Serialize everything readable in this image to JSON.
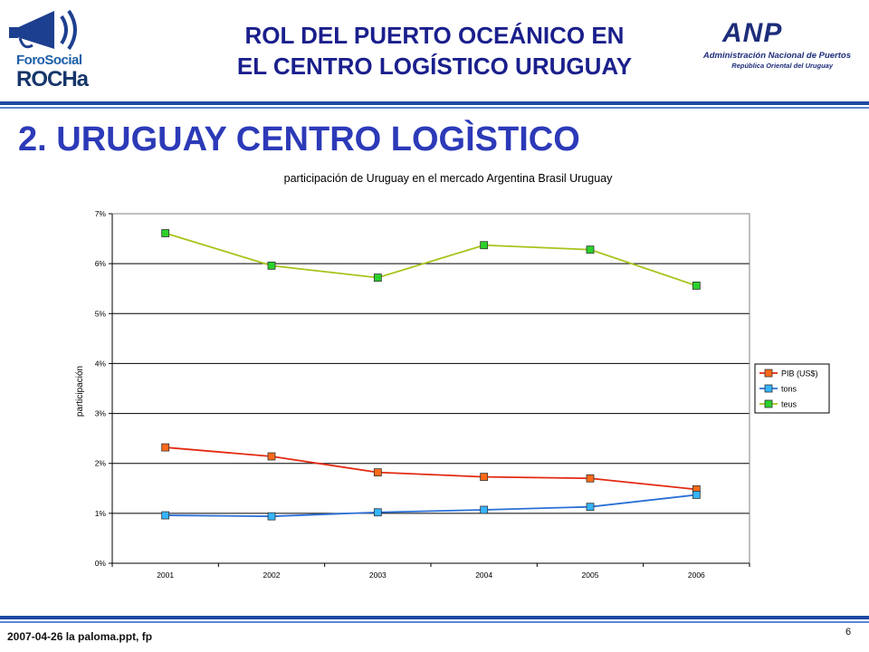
{
  "header": {
    "title_line1": "ROL DEL PUERTO OCEÁNICO EN",
    "title_line2": "EL CENTRO LOGÍSTICO URUGUAY",
    "logo_left": {
      "line1": "ForoSocial",
      "line2": "ROCHa"
    },
    "logo_right": {
      "name": "ANP",
      "line1": "Administración Nacional de Puertos",
      "line2": "República Oriental del Uruguay"
    }
  },
  "section_title": "2. URUGUAY CENTRO LOGÌSTICO",
  "chart_data": {
    "type": "line",
    "title": "participación de Uruguay en el mercado Argentina Brasil Uruguay",
    "xlabel": "",
    "ylabel": "participación",
    "categories": [
      "2001",
      "2002",
      "2003",
      "2004",
      "2005",
      "2006"
    ],
    "ylim": [
      0,
      0.07
    ],
    "yticks": [
      "0%",
      "1%",
      "2%",
      "3%",
      "4%",
      "5%",
      "6%",
      "7%"
    ],
    "grid": true,
    "legend": "right",
    "series": [
      {
        "name": "PIB (US$)",
        "color": "#e32a12",
        "marker": "#ff6a1a",
        "values": [
          0.0232,
          0.0214,
          0.0182,
          0.0173,
          0.017,
          0.0148
        ]
      },
      {
        "name": "tons",
        "color": "#2a6fd6",
        "marker": "#35b4ff",
        "values": [
          0.0096,
          0.0094,
          0.0102,
          0.0107,
          0.0113,
          0.0137
        ]
      },
      {
        "name": "teus",
        "color": "#a8c31a",
        "marker": "#2bd12b",
        "values": [
          0.0661,
          0.0596,
          0.0572,
          0.0637,
          0.0628,
          0.0556
        ]
      }
    ]
  },
  "footer": {
    "left": "2007-04-26 la paloma.ppt, fp",
    "page": "6"
  }
}
